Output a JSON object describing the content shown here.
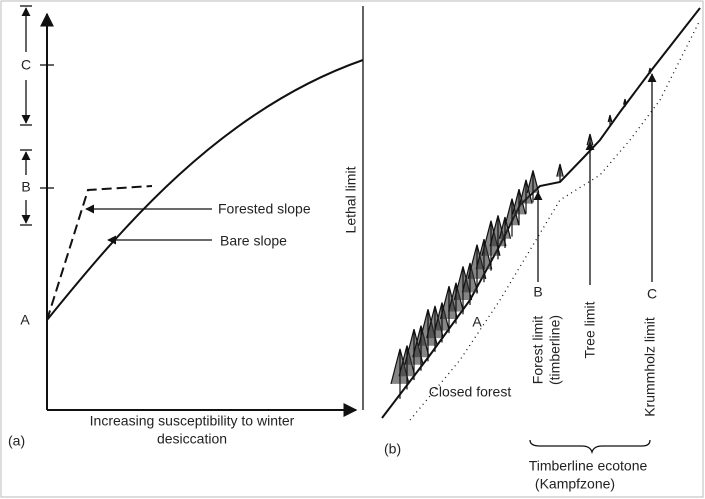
{
  "panel_a": {
    "label": "(a)",
    "levels": [
      "C",
      "B",
      "A"
    ],
    "forested_slope": "Forested slope",
    "bare_slope": "Bare slope",
    "lethal_limit": "Lethal limit",
    "x_axis_label": [
      "Increasing susceptibility to winter",
      "desiccation"
    ]
  },
  "panel_b": {
    "label": "(b)",
    "point_a": "A",
    "point_b": "B",
    "point_c": "C",
    "forest_limit": [
      "Forest limit",
      "(timberline)"
    ],
    "tree_limit": "Tree limit",
    "krummholz_limit": "Krummholz limit",
    "closed_forest": "Closed forest",
    "ecotone": [
      "Timberline ecotone",
      "(Kampfzone)"
    ]
  }
}
